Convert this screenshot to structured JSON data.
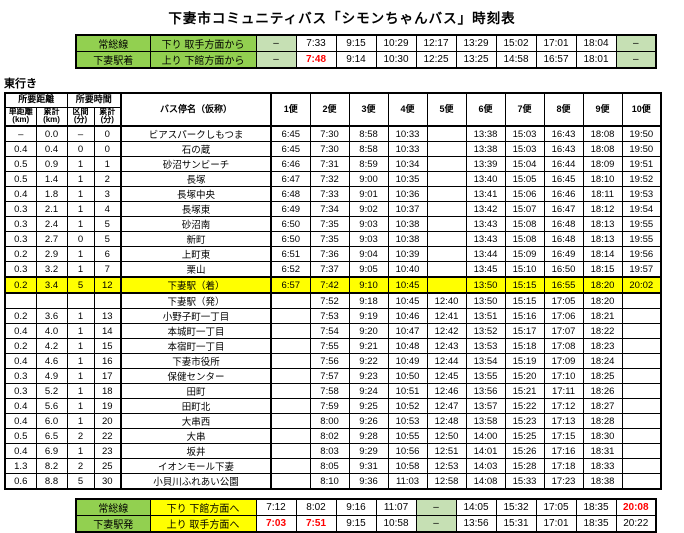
{
  "title": "下妻市コミュニティバス「シモンちゃんバス」時刻表",
  "direction_label": "東行き",
  "colors": {
    "header_green": "#92D050",
    "dash_green": "#C6E0B4",
    "highlight_yellow": "#FFFF00",
    "alert_red": "#FF0000"
  },
  "top_table": {
    "rows": [
      {
        "line": "常総線",
        "direction": "下り 取手方面から",
        "times": [
          "–",
          "7:33",
          "9:15",
          "10:29",
          "12:17",
          "13:29",
          "15:02",
          "17:01",
          "18:04",
          "–"
        ],
        "red": []
      },
      {
        "line": "下妻駅着",
        "direction": "上り 下館方面から",
        "times": [
          "–",
          "7:48",
          "9:14",
          "10:30",
          "12:25",
          "13:25",
          "14:58",
          "16:57",
          "18:01",
          "–"
        ],
        "red": [
          1
        ]
      }
    ]
  },
  "main_table": {
    "header": {
      "distance_group": "所要距離",
      "time_group": "所要時間",
      "sub": [
        {
          "label": "単距離",
          "unit": "(km)"
        },
        {
          "label": "累計",
          "unit": "(km)"
        },
        {
          "label": "区間",
          "unit": "(分)"
        },
        {
          "label": "累計",
          "unit": "(分)"
        }
      ],
      "stop_name": "バス停名（仮称）",
      "services": [
        "1便",
        "2便",
        "3便",
        "4便",
        "5便",
        "6便",
        "7便",
        "8便",
        "9便",
        "10便"
      ]
    },
    "rows": [
      {
        "d": "–",
        "cd": "0.0",
        "t": "–",
        "ct": "0",
        "stop": "ビアスパークしもつま",
        "highlight": false,
        "times": [
          "6:45",
          "7:30",
          "8:58",
          "10:33",
          "",
          "13:38",
          "15:03",
          "16:43",
          "18:08",
          "19:50"
        ]
      },
      {
        "d": "0.4",
        "cd": "0.4",
        "t": "0",
        "ct": "0",
        "stop": "石の蔵",
        "highlight": false,
        "times": [
          "6:45",
          "7:30",
          "8:58",
          "10:33",
          "",
          "13:38",
          "15:03",
          "16:43",
          "18:08",
          "19:50"
        ]
      },
      {
        "d": "0.5",
        "cd": "0.9",
        "t": "1",
        "ct": "1",
        "stop": "砂沼サンビーチ",
        "highlight": false,
        "times": [
          "6:46",
          "7:31",
          "8:59",
          "10:34",
          "",
          "13:39",
          "15:04",
          "16:44",
          "18:09",
          "19:51"
        ]
      },
      {
        "d": "0.5",
        "cd": "1.4",
        "t": "1",
        "ct": "2",
        "stop": "長塚",
        "highlight": false,
        "times": [
          "6:47",
          "7:32",
          "9:00",
          "10:35",
          "",
          "13:40",
          "15:05",
          "16:45",
          "18:10",
          "19:52"
        ]
      },
      {
        "d": "0.4",
        "cd": "1.8",
        "t": "1",
        "ct": "3",
        "stop": "長塚中央",
        "highlight": false,
        "times": [
          "6:48",
          "7:33",
          "9:01",
          "10:36",
          "",
          "13:41",
          "15:06",
          "16:46",
          "18:11",
          "19:53"
        ]
      },
      {
        "d": "0.3",
        "cd": "2.1",
        "t": "1",
        "ct": "4",
        "stop": "長塚東",
        "highlight": false,
        "times": [
          "6:49",
          "7:34",
          "9:02",
          "10:37",
          "",
          "13:42",
          "15:07",
          "16:47",
          "18:12",
          "19:54"
        ]
      },
      {
        "d": "0.3",
        "cd": "2.4",
        "t": "1",
        "ct": "5",
        "stop": "砂沼南",
        "highlight": false,
        "times": [
          "6:50",
          "7:35",
          "9:03",
          "10:38",
          "",
          "13:43",
          "15:08",
          "16:48",
          "18:13",
          "19:55"
        ]
      },
      {
        "d": "0.3",
        "cd": "2.7",
        "t": "0",
        "ct": "5",
        "stop": "新町",
        "highlight": false,
        "times": [
          "6:50",
          "7:35",
          "9:03",
          "10:38",
          "",
          "13:43",
          "15:08",
          "16:48",
          "18:13",
          "19:55"
        ]
      },
      {
        "d": "0.2",
        "cd": "2.9",
        "t": "1",
        "ct": "6",
        "stop": "上町東",
        "highlight": false,
        "times": [
          "6:51",
          "7:36",
          "9:04",
          "10:39",
          "",
          "13:44",
          "15:09",
          "16:49",
          "18:14",
          "19:56"
        ]
      },
      {
        "d": "0.3",
        "cd": "3.2",
        "t": "1",
        "ct": "7",
        "stop": "栗山",
        "highlight": false,
        "times": [
          "6:52",
          "7:37",
          "9:05",
          "10:40",
          "",
          "13:45",
          "15:10",
          "16:50",
          "18:15",
          "19:57"
        ]
      },
      {
        "d": "0.2",
        "cd": "3.4",
        "t": "5",
        "ct": "12",
        "stop": "下妻駅（着）",
        "highlight": true,
        "times": [
          "6:57",
          "7:42",
          "9:10",
          "10:45",
          "",
          "13:50",
          "15:15",
          "16:55",
          "18:20",
          "20:02"
        ]
      },
      {
        "d": "",
        "cd": "",
        "t": "",
        "ct": "",
        "stop": "下妻駅（発）",
        "highlight": false,
        "times": [
          "",
          "7:52",
          "9:18",
          "10:45",
          "12:40",
          "13:50",
          "15:15",
          "17:05",
          "18:20",
          ""
        ]
      },
      {
        "d": "0.2",
        "cd": "3.6",
        "t": "1",
        "ct": "13",
        "stop": "小野子町一丁目",
        "highlight": false,
        "times": [
          "",
          "7:53",
          "9:19",
          "10:46",
          "12:41",
          "13:51",
          "15:16",
          "17:06",
          "18:21",
          ""
        ]
      },
      {
        "d": "0.4",
        "cd": "4.0",
        "t": "1",
        "ct": "14",
        "stop": "本城町一丁目",
        "highlight": false,
        "times": [
          "",
          "7:54",
          "9:20",
          "10:47",
          "12:42",
          "13:52",
          "15:17",
          "17:07",
          "18:22",
          ""
        ]
      },
      {
        "d": "0.2",
        "cd": "4.2",
        "t": "1",
        "ct": "15",
        "stop": "本宿町一丁目",
        "highlight": false,
        "times": [
          "",
          "7:55",
          "9:21",
          "10:48",
          "12:43",
          "13:53",
          "15:18",
          "17:08",
          "18:23",
          ""
        ]
      },
      {
        "d": "0.4",
        "cd": "4.6",
        "t": "1",
        "ct": "16",
        "stop": "下妻市役所",
        "highlight": false,
        "times": [
          "",
          "7:56",
          "9:22",
          "10:49",
          "12:44",
          "13:54",
          "15:19",
          "17:09",
          "18:24",
          ""
        ]
      },
      {
        "d": "0.3",
        "cd": "4.9",
        "t": "1",
        "ct": "17",
        "stop": "保健センター",
        "highlight": false,
        "times": [
          "",
          "7:57",
          "9:23",
          "10:50",
          "12:45",
          "13:55",
          "15:20",
          "17:10",
          "18:25",
          ""
        ]
      },
      {
        "d": "0.3",
        "cd": "5.2",
        "t": "1",
        "ct": "18",
        "stop": "田町",
        "highlight": false,
        "times": [
          "",
          "7:58",
          "9:24",
          "10:51",
          "12:46",
          "13:56",
          "15:21",
          "17:11",
          "18:26",
          ""
        ]
      },
      {
        "d": "0.4",
        "cd": "5.6",
        "t": "1",
        "ct": "19",
        "stop": "田町北",
        "highlight": false,
        "times": [
          "",
          "7:59",
          "9:25",
          "10:52",
          "12:47",
          "13:57",
          "15:22",
          "17:12",
          "18:27",
          ""
        ]
      },
      {
        "d": "0.4",
        "cd": "6.0",
        "t": "1",
        "ct": "20",
        "stop": "大串西",
        "highlight": false,
        "times": [
          "",
          "8:00",
          "9:26",
          "10:53",
          "12:48",
          "13:58",
          "15:23",
          "17:13",
          "18:28",
          ""
        ]
      },
      {
        "d": "0.5",
        "cd": "6.5",
        "t": "2",
        "ct": "22",
        "stop": "大串",
        "highlight": false,
        "times": [
          "",
          "8:02",
          "9:28",
          "10:55",
          "12:50",
          "14:00",
          "15:25",
          "17:15",
          "18:30",
          ""
        ]
      },
      {
        "d": "0.4",
        "cd": "6.9",
        "t": "1",
        "ct": "23",
        "stop": "坂井",
        "highlight": false,
        "times": [
          "",
          "8:03",
          "9:29",
          "10:56",
          "12:51",
          "14:01",
          "15:26",
          "17:16",
          "18:31",
          ""
        ]
      },
      {
        "d": "1.3",
        "cd": "8.2",
        "t": "2",
        "ct": "25",
        "stop": "イオンモール下妻",
        "highlight": false,
        "times": [
          "",
          "8:05",
          "9:31",
          "10:58",
          "12:53",
          "14:03",
          "15:28",
          "17:18",
          "18:33",
          ""
        ]
      },
      {
        "d": "0.6",
        "cd": "8.8",
        "t": "5",
        "ct": "30",
        "stop": "小貝川ふれあい公園",
        "highlight": false,
        "times": [
          "",
          "8:10",
          "9:36",
          "11:03",
          "12:58",
          "14:08",
          "15:33",
          "17:23",
          "18:38",
          ""
        ]
      }
    ]
  },
  "bottom_table": {
    "rows": [
      {
        "line": "常総線",
        "direction": "下り 下館方面へ",
        "times": [
          "7:12",
          "8:02",
          "9:16",
          "11:07",
          "–",
          "14:05",
          "15:32",
          "17:05",
          "18:35",
          "20:08"
        ],
        "red": [
          9
        ]
      },
      {
        "line": "下妻駅発",
        "direction": "上り 取手方面へ",
        "times": [
          "7:03",
          "7:51",
          "9:15",
          "10:58",
          "–",
          "13:56",
          "15:31",
          "17:01",
          "18:35",
          "20:22"
        ],
        "red": [
          0,
          1
        ]
      }
    ]
  }
}
